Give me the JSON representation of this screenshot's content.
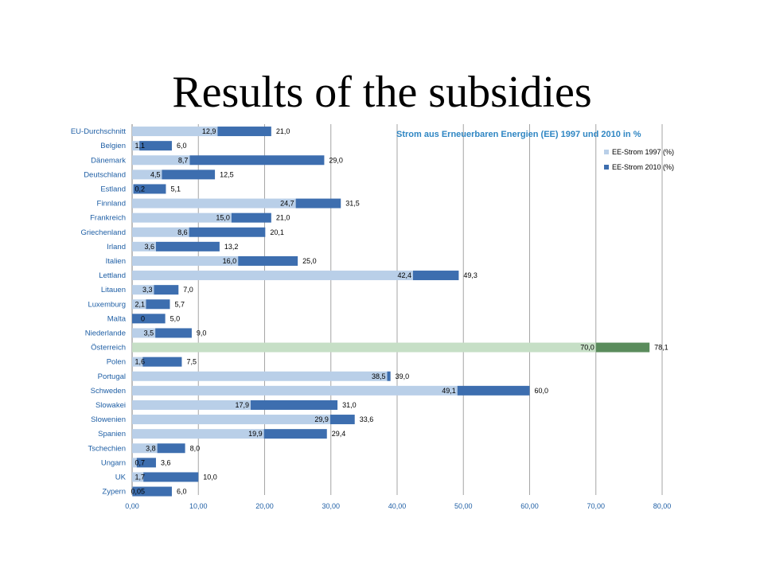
{
  "slide": {
    "title": "Results of the subsidies"
  },
  "chart_data": {
    "type": "bar",
    "orientation": "horizontal",
    "title": "Strom aus Erneuerbaren Energien (EE) 1997 und 2010 in %",
    "categories": [
      "EU-Durchschnitt",
      "Belgien",
      "Dänemark",
      "Deutschland",
      "Estland",
      "Finnland",
      "Frankreich",
      "Griechenland",
      "Irland",
      "Italien",
      "Lettland",
      "Litauen",
      "Luxemburg",
      "Malta",
      "Niederlande",
      "Österreich",
      "Polen",
      "Portugal",
      "Schweden",
      "Slowakei",
      "Slowenien",
      "Spanien",
      "Tschechien",
      "Ungarn",
      "UK",
      "Zypern"
    ],
    "series": [
      {
        "name": "EE-Strom 1997 (%)",
        "color": "#b9cfe8",
        "values": [
          12.9,
          1.1,
          8.7,
          4.5,
          0.2,
          24.7,
          15.0,
          8.6,
          3.6,
          16.0,
          42.4,
          3.3,
          2.1,
          0,
          3.5,
          70.0,
          1.6,
          38.5,
          49.1,
          17.9,
          29.9,
          19.9,
          3.8,
          0.7,
          1.7,
          0.05
        ],
        "labels": [
          "12,9",
          "1,1",
          "8,7",
          "4,5",
          "0,2",
          "24,7",
          "15,0",
          "8,6",
          "3,6",
          "16,0",
          "42,4",
          "3,3",
          "2,1",
          "0",
          "3,5",
          "70,0",
          "1,6",
          "38,5",
          "49,1",
          "17,9",
          "29,9",
          "19,9",
          "3,8",
          "0,7",
          "1,7",
          "0,05"
        ]
      },
      {
        "name": "EE-Strom 2010 (%)",
        "color": "#3d6eaf",
        "values": [
          21.0,
          6.0,
          29.0,
          12.5,
          5.1,
          31.5,
          21.0,
          20.1,
          13.2,
          25.0,
          49.3,
          7.0,
          5.7,
          5.0,
          9.0,
          78.1,
          7.5,
          39.0,
          60.0,
          31.0,
          33.6,
          29.4,
          8.0,
          3.6,
          10.0,
          6.0
        ],
        "labels": [
          "21,0",
          "6,0",
          "29,0",
          "12,5",
          "5,1",
          "31,5",
          "21,0",
          "20,1",
          "13,2",
          "25,0",
          "49,3",
          "7,0",
          "5,7",
          "5,0",
          "9,0",
          "78,1",
          "7,5",
          "39,0",
          "60,0",
          "31,0",
          "33,6",
          "29,4",
          "8,0",
          "3,6",
          "10,0",
          "6,0"
        ]
      }
    ],
    "highlight": {
      "category": "Österreich",
      "color_1997": "#c6dfc6",
      "color_2010": "#5a8c5c"
    },
    "xlim": [
      0,
      80
    ],
    "x_ticks": [
      0,
      10,
      20,
      30,
      40,
      50,
      60,
      70,
      80
    ],
    "x_tick_labels": [
      "0,00",
      "10,00",
      "20,00",
      "30,00",
      "40,00",
      "50,00",
      "60,00",
      "70,00",
      "80,00"
    ],
    "grid": "vertical",
    "legend_position": "top-right",
    "colors": {
      "axis_text": "#1f5fa5",
      "title": "#2f86c3",
      "grid": "#a6a6a6"
    }
  }
}
